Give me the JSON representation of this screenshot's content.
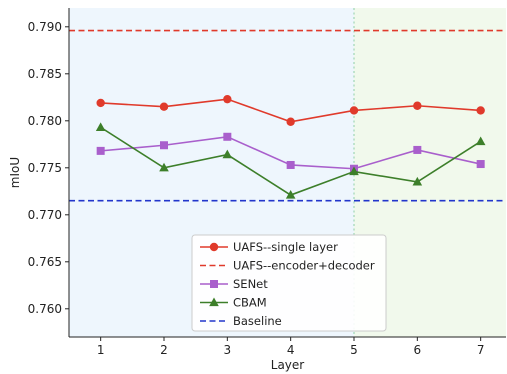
{
  "chart_data": {
    "type": "line",
    "xlabel": "Layer",
    "ylabel": "mIoU",
    "x": [
      1,
      2,
      3,
      4,
      5,
      6,
      7
    ],
    "xlim": [
      0.5,
      7.4
    ],
    "ylim": [
      0.757,
      0.792
    ],
    "xticks": [
      "1",
      "2",
      "3",
      "4",
      "5",
      "6",
      "7"
    ],
    "yticks": [
      "0.760",
      "0.765",
      "0.770",
      "0.775",
      "0.780",
      "0.785",
      "0.790"
    ],
    "grid": false,
    "legend_position": "lower-center",
    "regions": [
      {
        "x_range": [
          0.5,
          5
        ],
        "color": "#eef6fd"
      },
      {
        "x_range": [
          5,
          7.4
        ],
        "color": "#f1f9ec"
      }
    ],
    "vline": {
      "x": 5,
      "color": "#9fd6b5"
    },
    "series": [
      {
        "name": "UAFS--single layer",
        "kind": "line",
        "marker": "circle",
        "color": "#e03a2b",
        "values": [
          0.7819,
          0.7815,
          0.7823,
          0.7799,
          0.7811,
          0.7816,
          0.7811
        ]
      },
      {
        "name": "UAFS--encoder+decoder",
        "kind": "hline",
        "color": "#e03a2b",
        "value": 0.7896
      },
      {
        "name": "SENet",
        "kind": "line",
        "marker": "square",
        "color": "#a95fcc",
        "values": [
          0.7768,
          0.7774,
          0.7783,
          0.7753,
          0.7749,
          0.7769,
          0.7754
        ]
      },
      {
        "name": "CBAM",
        "kind": "line",
        "marker": "triangle",
        "color": "#3d7f2a",
        "values": [
          0.7793,
          0.775,
          0.7764,
          0.7721,
          0.7746,
          0.7735,
          0.7778
        ]
      },
      {
        "name": "Baseline",
        "kind": "hline",
        "color": "#2236cc",
        "value": 0.7715
      }
    ]
  }
}
